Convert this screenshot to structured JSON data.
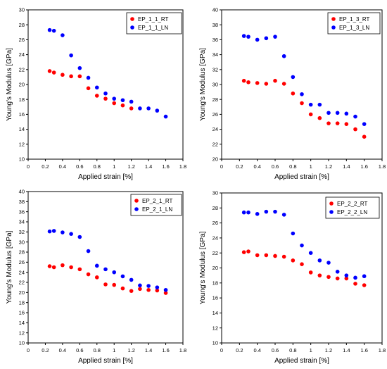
{
  "chart_data": [
    {
      "type": "scatter",
      "title": "",
      "xlabel": "Applied strain [%]",
      "ylabel": "Young's Modulus [GPa]",
      "xlim": [
        0,
        1.8
      ],
      "ylim": [
        10,
        30
      ],
      "xticks": [
        "0",
        "0.2",
        "0.4",
        "0.6",
        "0.8",
        "1",
        "1.2",
        "1.4",
        "1.6",
        "1.8"
      ],
      "yticks": [
        "10",
        "12",
        "14",
        "16",
        "18",
        "20",
        "22",
        "24",
        "26",
        "28",
        "30"
      ],
      "legend_position": "top-right",
      "grid": false,
      "series": [
        {
          "name": "EP_1_1_RT",
          "color": "#ff0000",
          "x": [
            0.25,
            0.3,
            0.4,
            0.5,
            0.6,
            0.7,
            0.8,
            0.9,
            1.0,
            1.1,
            1.2
          ],
          "y": [
            21.8,
            21.6,
            21.3,
            21.1,
            21.1,
            19.5,
            18.5,
            18.1,
            17.5,
            17.2,
            16.8
          ]
        },
        {
          "name": "EP_1_1_LN",
          "color": "#0000ff",
          "x": [
            0.25,
            0.3,
            0.4,
            0.5,
            0.6,
            0.7,
            0.8,
            0.9,
            1.0,
            1.1,
            1.2,
            1.3,
            1.4,
            1.5,
            1.6
          ],
          "y": [
            27.3,
            27.2,
            26.6,
            23.9,
            22.2,
            20.9,
            19.6,
            18.8,
            18.1,
            17.9,
            17.7,
            16.8,
            16.8,
            16.5,
            15.7
          ]
        }
      ]
    },
    {
      "type": "scatter",
      "title": "",
      "xlabel": "Applied strain [%]",
      "ylabel": "Young's Modulus [GPa]",
      "xlim": [
        0,
        1.8
      ],
      "ylim": [
        20,
        40
      ],
      "xticks": [
        "0",
        "0.2",
        "0.4",
        "0.6",
        "0.8",
        "1",
        "1.2",
        "1.4",
        "1.6",
        "1.8"
      ],
      "yticks": [
        "20",
        "22",
        "24",
        "26",
        "28",
        "30",
        "32",
        "34",
        "36",
        "38",
        "40"
      ],
      "legend_position": "top-right",
      "grid": false,
      "series": [
        {
          "name": "EP_1_3_RT",
          "color": "#ff0000",
          "x": [
            0.25,
            0.3,
            0.4,
            0.5,
            0.6,
            0.7,
            0.8,
            0.9,
            1.0,
            1.1,
            1.2,
            1.3,
            1.4,
            1.5,
            1.6
          ],
          "y": [
            30.5,
            30.3,
            30.2,
            30.1,
            30.5,
            30.1,
            28.8,
            27.5,
            26.0,
            25.5,
            24.8,
            24.8,
            24.7,
            24.0,
            23.0
          ]
        },
        {
          "name": "EP_1_3_LN",
          "color": "#0000ff",
          "x": [
            0.25,
            0.3,
            0.4,
            0.5,
            0.6,
            0.7,
            0.8,
            0.9,
            1.0,
            1.1,
            1.2,
            1.3,
            1.4,
            1.5,
            1.6
          ],
          "y": [
            36.5,
            36.4,
            36.0,
            36.2,
            36.4,
            33.8,
            31.0,
            28.7,
            27.3,
            27.3,
            26.2,
            26.2,
            26.1,
            25.7,
            24.7
          ]
        }
      ]
    },
    {
      "type": "scatter",
      "title": "",
      "xlabel": "Applied strain [%]",
      "ylabel": "Young's Modulus [GPa]",
      "xlim": [
        0,
        1.8
      ],
      "ylim": [
        10,
        40
      ],
      "xticks": [
        "0",
        "0.2",
        "0.4",
        "0.6",
        "0.8",
        "1",
        "1.2",
        "1.4",
        "1.6",
        "1.8"
      ],
      "yticks": [
        "10",
        "12",
        "14",
        "16",
        "18",
        "20",
        "22",
        "24",
        "26",
        "28",
        "30",
        "32",
        "34",
        "36",
        "38",
        "40"
      ],
      "legend_position": "top-right",
      "grid": false,
      "series": [
        {
          "name": "EP_2_1_RT",
          "color": "#ff0000",
          "x": [
            0.25,
            0.3,
            0.4,
            0.5,
            0.6,
            0.7,
            0.8,
            0.9,
            1.0,
            1.1,
            1.2,
            1.3,
            1.4,
            1.5,
            1.6
          ],
          "y": [
            25.2,
            25.0,
            25.4,
            25.0,
            24.6,
            23.6,
            23.0,
            21.6,
            21.5,
            20.8,
            20.3,
            20.7,
            20.5,
            20.4,
            19.9
          ]
        },
        {
          "name": "EP_2_1_LN",
          "color": "#0000ff",
          "x": [
            0.25,
            0.3,
            0.4,
            0.5,
            0.6,
            0.7,
            0.8,
            0.9,
            1.0,
            1.1,
            1.2,
            1.3,
            1.4,
            1.5,
            1.6
          ],
          "y": [
            32.1,
            32.2,
            31.9,
            31.6,
            31.0,
            28.2,
            25.3,
            24.6,
            24.0,
            23.2,
            22.5,
            21.4,
            21.3,
            21.0,
            20.5
          ]
        }
      ]
    },
    {
      "type": "scatter",
      "title": "",
      "xlabel": "Applied strain [%]",
      "ylabel": "Young's Modulus [GPa]",
      "xlim": [
        0,
        1.8
      ],
      "ylim": [
        10,
        30
      ],
      "xticks": [
        "0",
        "0.2",
        "0.4",
        "0.6",
        "0.8",
        "1",
        "1.2",
        "1.4",
        "1.6",
        "1.8"
      ],
      "yticks": [
        "10",
        "12",
        "14",
        "16",
        "18",
        "20",
        "22",
        "24",
        "26",
        "28",
        "30"
      ],
      "legend_position": "top-right",
      "grid": false,
      "series": [
        {
          "name": "EP_2_2_RT",
          "color": "#ff0000",
          "x": [
            0.25,
            0.3,
            0.4,
            0.5,
            0.6,
            0.7,
            0.8,
            0.9,
            1.0,
            1.1,
            1.2,
            1.3,
            1.4,
            1.5,
            1.6
          ],
          "y": [
            22.1,
            22.2,
            21.7,
            21.7,
            21.6,
            21.5,
            21.0,
            20.5,
            19.4,
            19.0,
            18.8,
            18.6,
            18.6,
            17.9,
            17.7
          ]
        },
        {
          "name": "EP_2_2_LN",
          "color": "#0000ff",
          "x": [
            0.25,
            0.3,
            0.4,
            0.5,
            0.6,
            0.7,
            0.8,
            0.9,
            1.0,
            1.1,
            1.2,
            1.3,
            1.4,
            1.5,
            1.6
          ],
          "y": [
            27.4,
            27.4,
            27.2,
            27.5,
            27.5,
            27.1,
            24.6,
            23.0,
            22.0,
            21.0,
            20.7,
            19.5,
            19.0,
            18.7,
            18.9
          ]
        }
      ]
    }
  ]
}
